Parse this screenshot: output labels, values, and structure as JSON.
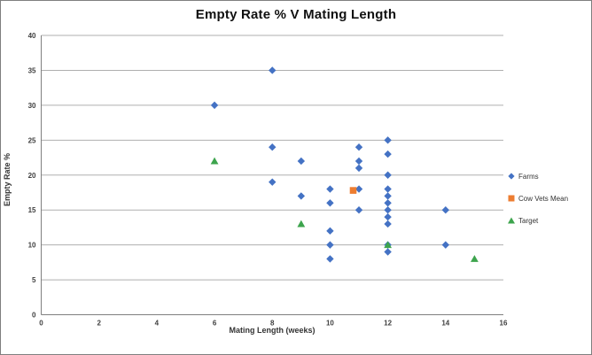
{
  "chart_data": {
    "type": "scatter",
    "title": "Empty Rate % V Mating Length",
    "xlabel": "Mating Length (weeks)",
    "ylabel": "Empty Rate %",
    "xlim": [
      0,
      16
    ],
    "xstep": 2,
    "ylim": [
      0,
      40
    ],
    "ystep": 5,
    "grid": "horizontal-only",
    "legend_position": "right",
    "colors": {
      "farms": "#4472C4",
      "cow_vets_mean": "#ED7D31",
      "target": "#3DA44D",
      "gridline": "#AFAFAF",
      "axis_line": "#7F7F7F",
      "tick_text": "#404040"
    },
    "series": [
      {
        "name": "Farms",
        "marker": "diamond",
        "color": "#4472C4",
        "points": [
          [
            6,
            30
          ],
          [
            8,
            35
          ],
          [
            8,
            24
          ],
          [
            8,
            19
          ],
          [
            9,
            22
          ],
          [
            9,
            17
          ],
          [
            10,
            18
          ],
          [
            10,
            16
          ],
          [
            10,
            12
          ],
          [
            10,
            10
          ],
          [
            10,
            8
          ],
          [
            11,
            24
          ],
          [
            11,
            22
          ],
          [
            11,
            21
          ],
          [
            11,
            18
          ],
          [
            11,
            15
          ],
          [
            12,
            25
          ],
          [
            12,
            23
          ],
          [
            12,
            20
          ],
          [
            12,
            18
          ],
          [
            12,
            17
          ],
          [
            12,
            16
          ],
          [
            12,
            15
          ],
          [
            12,
            14
          ],
          [
            12,
            13
          ],
          [
            12,
            10
          ],
          [
            12,
            9
          ],
          [
            14,
            15
          ],
          [
            14,
            10
          ]
        ]
      },
      {
        "name": "Cow Vets Mean",
        "marker": "square",
        "color": "#ED7D31",
        "points": [
          [
            10.8,
            17.8
          ]
        ]
      },
      {
        "name": "Target",
        "marker": "triangle",
        "color": "#3DA44D",
        "points": [
          [
            6,
            22
          ],
          [
            9,
            13
          ],
          [
            12,
            10
          ],
          [
            15,
            8
          ]
        ]
      }
    ]
  }
}
